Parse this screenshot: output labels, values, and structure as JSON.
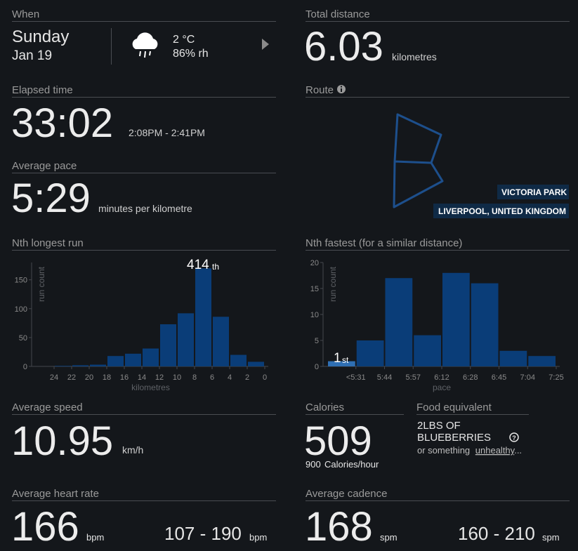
{
  "when": {
    "label": "When",
    "day": "Sunday",
    "date": "Jan 19",
    "temperature": "2 °C",
    "humidity": "86% rh"
  },
  "total_distance": {
    "label": "Total distance",
    "value": "6.03",
    "unit": "kilometres"
  },
  "elapsed_time": {
    "label": "Elapsed time",
    "value": "33:02",
    "range": "2:08PM - 2:41PM"
  },
  "average_pace": {
    "label": "Average pace",
    "value": "5:29",
    "unit": "minutes per kilometre"
  },
  "route": {
    "label": "Route",
    "places": [
      "VICTORIA PARK",
      "LIVERPOOL, UNITED KINGDOM"
    ]
  },
  "average_speed": {
    "label": "Average speed",
    "value": "10.95",
    "unit": "km/h"
  },
  "calories": {
    "label": "Calories",
    "value": "509",
    "rate": "900",
    "rate_unit": "Calories/hour"
  },
  "food_equivalent": {
    "label": "Food equivalent",
    "lines": [
      "2LBS OF",
      "BLUEBERRIES"
    ],
    "note": [
      "or something",
      "unhealthy",
      "..."
    ]
  },
  "average_heart_rate": {
    "label": "Average heart rate",
    "value": "166",
    "unit": "bpm",
    "range": "107 - 190",
    "range_unit": "bpm"
  },
  "average_cadence": {
    "label": "Average cadence",
    "value": "168",
    "unit": "spm",
    "range": "160 - 210",
    "range_unit": "spm"
  },
  "chart_data": [
    {
      "type": "histogram",
      "title": "Nth longest run",
      "bins": [
        0,
        2,
        4,
        6,
        8,
        10,
        12,
        14,
        16,
        18,
        20,
        22,
        24
      ],
      "values": [
        8,
        20,
        86,
        170,
        92,
        73,
        31,
        22,
        18,
        3,
        2,
        1
      ],
      "color": "#0a3d78",
      "xlim": [
        26,
        0
      ],
      "xticks": [
        24,
        22,
        20,
        18,
        16,
        14,
        12,
        10,
        8,
        6,
        4,
        2,
        0
      ],
      "ylim": [
        0,
        180
      ],
      "yticks": [
        0,
        50,
        100,
        150
      ],
      "x_label": "kilometres",
      "y_label": "run count",
      "annotation": {
        "text": "414",
        "suffix": "th"
      }
    },
    {
      "type": "bar",
      "title": "Nth fastest (for a similar distance)",
      "categories": [
        "<5:31",
        "5:44",
        "5:57",
        "6:12",
        "6:28",
        "6:45",
        "7:04",
        "7:25"
      ],
      "values": [
        1,
        5,
        17,
        6,
        18,
        16,
        3,
        2
      ],
      "colors": [
        "#2f6fb3",
        "#0a3d78",
        "#0a3d78",
        "#0a3d78",
        "#0a3d78",
        "#0a3d78",
        "#0a3d78",
        "#0a3d78"
      ],
      "ylim": [
        0,
        20
      ],
      "yticks": [
        0,
        5,
        10,
        15,
        20
      ],
      "x_label": "pace",
      "y_label": "run count",
      "annotation": {
        "text": "1",
        "suffix": "st"
      }
    }
  ]
}
